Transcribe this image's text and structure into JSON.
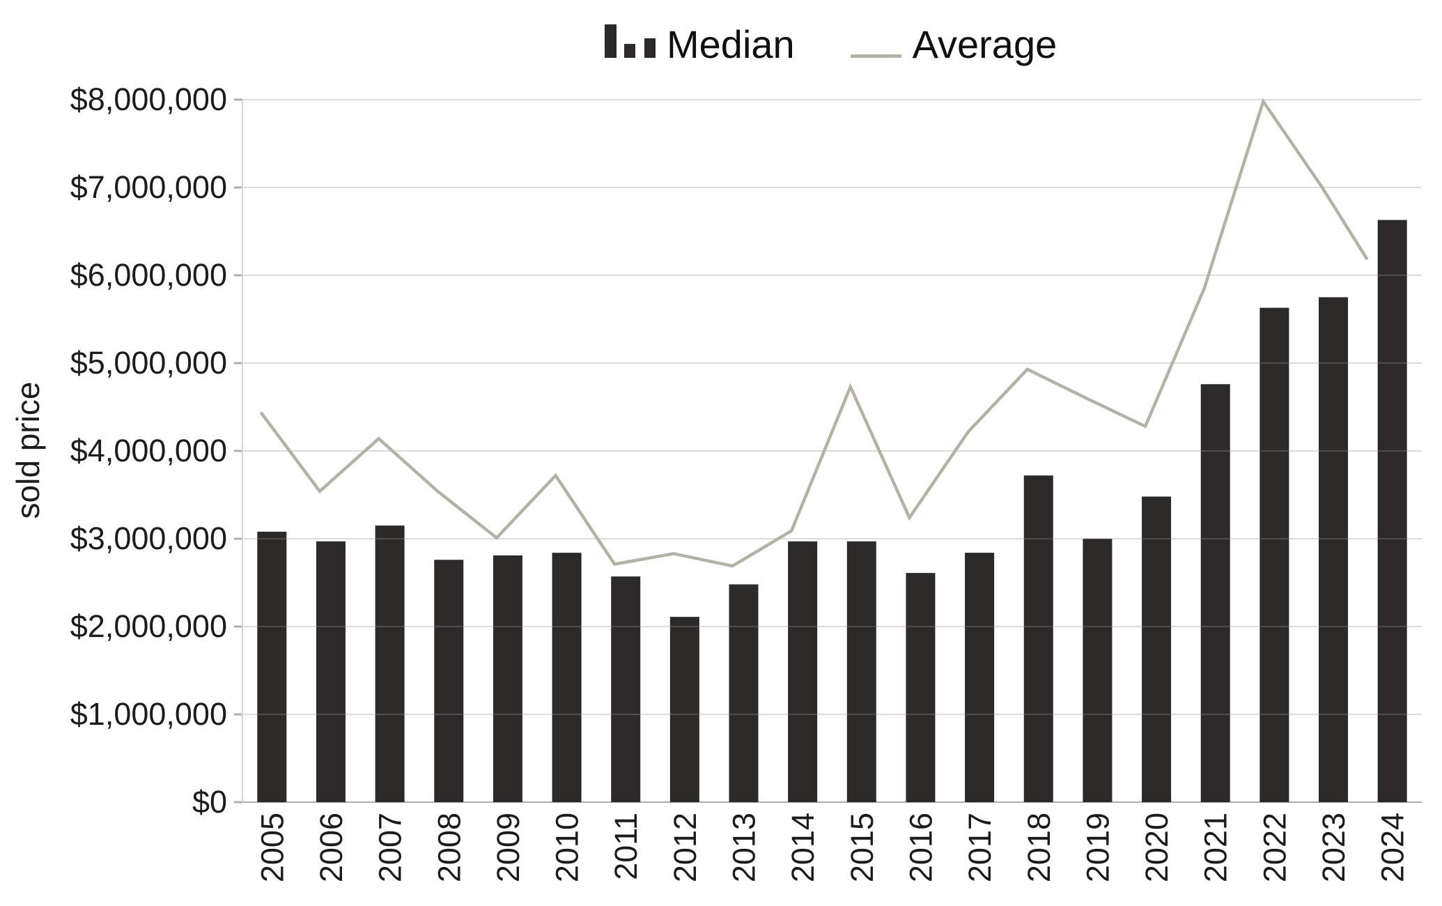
{
  "legend_note": "legend labels bound from chart_data.series names",
  "y_axis": {
    "title": "sold price",
    "tick_labels": [
      "$0",
      "$1,000,000",
      "$2,000,000",
      "$3,000,000",
      "$4,000,000",
      "$5,000,000",
      "$6,000,000",
      "$7,000,000",
      "$8,000,000"
    ]
  },
  "chart_data": {
    "type": "bar",
    "categories": [
      "2005",
      "2006",
      "2007",
      "2008",
      "2009",
      "2010",
      "2011",
      "2012",
      "2013",
      "2014",
      "2015",
      "2016",
      "2017",
      "2018",
      "2019",
      "2020",
      "2021",
      "2022",
      "2023",
      "2024"
    ],
    "series": [
      {
        "name": "Median",
        "type": "bar",
        "values": [
          3080000,
          2970000,
          3150000,
          2760000,
          2810000,
          2840000,
          2570000,
          2110000,
          2480000,
          2970000,
          2970000,
          2610000,
          2840000,
          3720000,
          3000000,
          3480000,
          4760000,
          5630000,
          5750000,
          6630000
        ]
      },
      {
        "name": "Average",
        "type": "line",
        "values": [
          4440000,
          3540000,
          4140000,
          3540000,
          3010000,
          3720000,
          2710000,
          2830000,
          2690000,
          3090000,
          4730000,
          3240000,
          4220000,
          4930000,
          4600000,
          4280000,
          5850000,
          7980000,
          7000000,
          6180000
        ]
      }
    ],
    "title": "",
    "xlabel": "",
    "ylabel": "sold price",
    "ylim": [
      0,
      8000000
    ],
    "y_tick_step": 1000000,
    "grid": "horizontal",
    "legend_position": "top-center",
    "colors": {
      "bar": "#2b2a28",
      "line": "#b3b2a4",
      "grid": "#d5d5d5",
      "axis": "#aeaeae",
      "text": "#1c1c1c",
      "background": "#ffffff"
    }
  }
}
